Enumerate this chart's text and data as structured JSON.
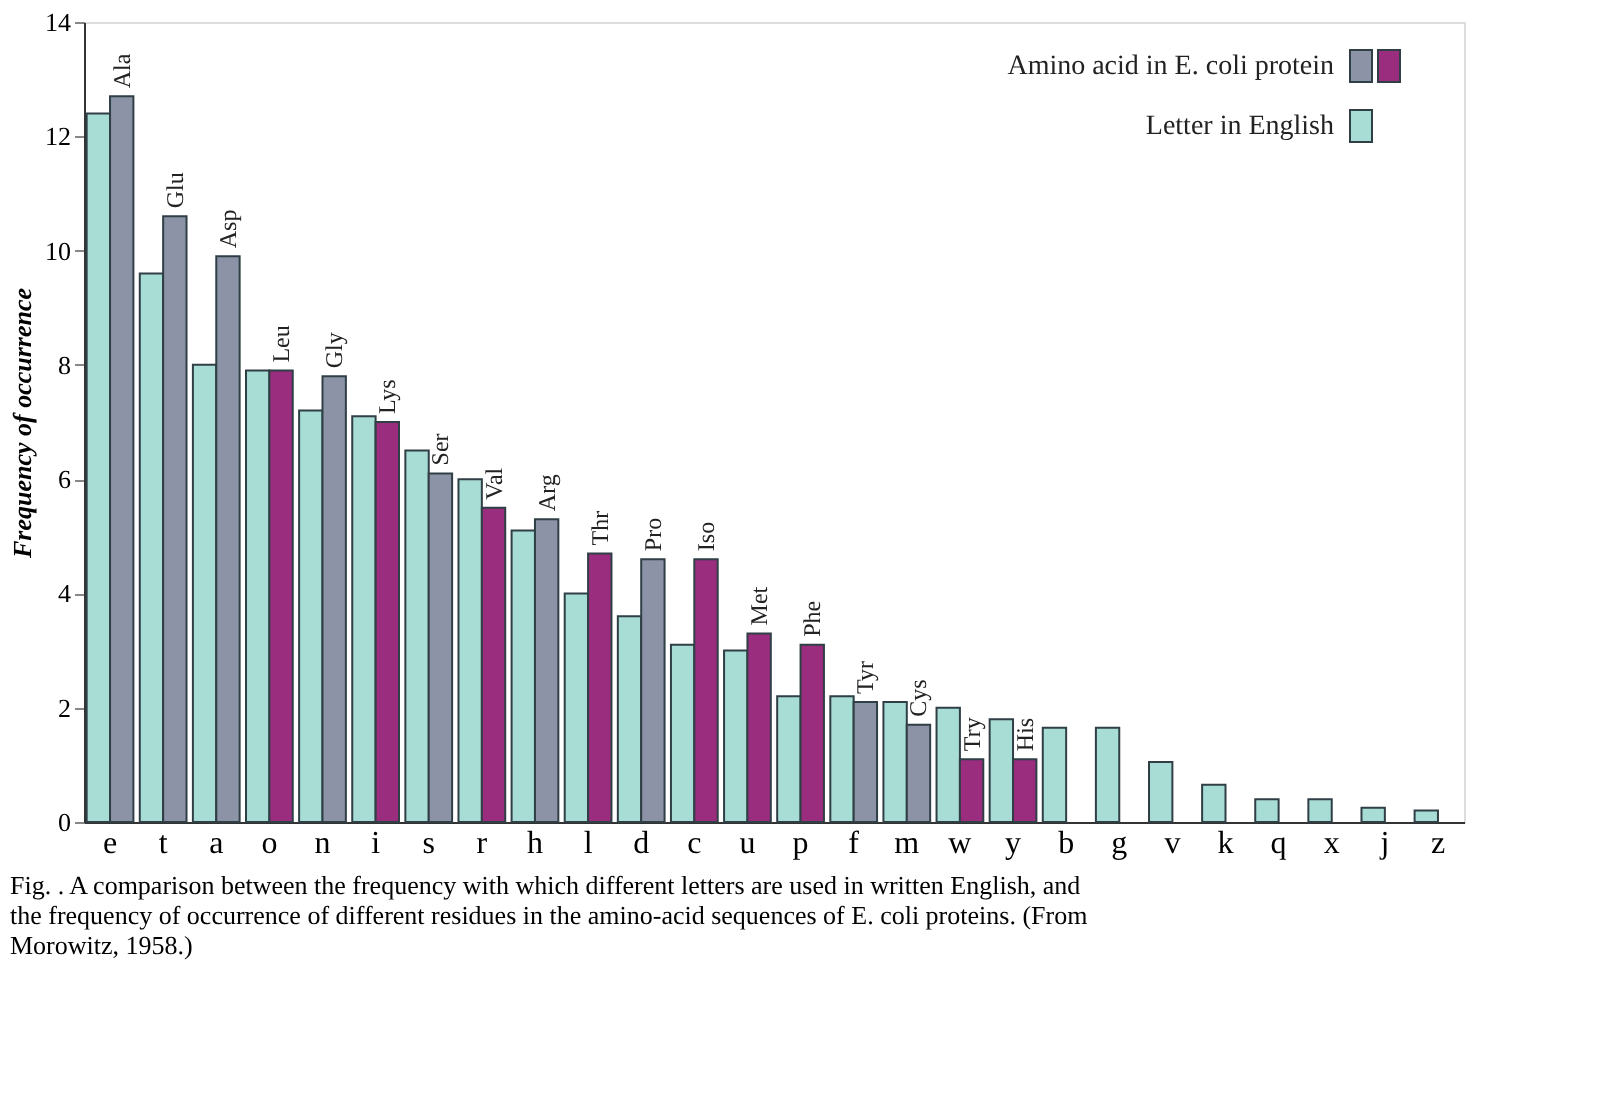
{
  "chart_data": {
    "type": "bar",
    "ylabel": "Frequency of occurrence",
    "categories": [
      "e",
      "t",
      "a",
      "o",
      "n",
      "i",
      "s",
      "r",
      "h",
      "l",
      "d",
      "c",
      "u",
      "p",
      "f",
      "m",
      "w",
      "y",
      "b",
      "g",
      "v",
      "k",
      "q",
      "x",
      "j",
      "z"
    ],
    "series": [
      {
        "name": "Letter in English",
        "color": "#a8ddd5",
        "values": [
          12.4,
          9.6,
          8.0,
          7.9,
          7.2,
          7.1,
          6.5,
          6.0,
          5.1,
          4.0,
          3.6,
          3.1,
          3.0,
          2.2,
          2.2,
          2.1,
          2.0,
          1.8,
          1.65,
          1.65,
          1.05,
          0.65,
          0.4,
          0.4,
          0.25,
          0.2
        ]
      },
      {
        "name": "Amino acid in E. coli protein",
        "colors": [
          "#8c93a6",
          "#8c93a6",
          "#8c93a6",
          "#9b2d7f",
          "#8c93a6",
          "#9b2d7f",
          "#8c93a6",
          "#9b2d7f",
          "#8c93a6",
          "#9b2d7f",
          "#8c93a6",
          "#9b2d7f",
          "#9b2d7f",
          "#9b2d7f",
          "#8c93a6",
          "#8c93a6",
          "#9b2d7f",
          "#9b2d7f",
          null,
          null,
          null,
          null,
          null,
          null,
          null,
          null
        ],
        "values": [
          12.7,
          10.6,
          9.9,
          7.9,
          7.8,
          7.0,
          6.1,
          5.5,
          5.3,
          4.7,
          4.6,
          4.6,
          3.3,
          3.1,
          2.1,
          1.7,
          1.1,
          1.1,
          null,
          null,
          null,
          null,
          null,
          null,
          null,
          null
        ]
      }
    ],
    "ylim": [
      0,
      14
    ],
    "yticks": [
      0,
      2,
      4,
      6,
      8,
      10,
      12,
      14
    ],
    "grid": false,
    "legend": "top right",
    "annotations": [
      {
        "text": "Ala",
        "x": "e",
        "y": 12.7
      },
      {
        "text": "Glu",
        "x": "t",
        "y": 10.6
      },
      {
        "text": "Asp",
        "x": "a",
        "y": 9.9
      },
      {
        "text": "Leu",
        "x": "o",
        "y": 7.9
      },
      {
        "text": "Gly",
        "x": "n",
        "y": 7.8
      },
      {
        "text": "Lys",
        "x": "i",
        "y": 7.0
      },
      {
        "text": "Ser",
        "x": "s",
        "y": 6.1
      },
      {
        "text": "Val",
        "x": "r",
        "y": 5.5
      },
      {
        "text": "Arg",
        "x": "h",
        "y": 5.3
      },
      {
        "text": "Thr",
        "x": "l",
        "y": 4.7
      },
      {
        "text": "Pro",
        "x": "d",
        "y": 4.6
      },
      {
        "text": "Iso",
        "x": "c",
        "y": 4.6
      },
      {
        "text": "Met",
        "x": "u",
        "y": 3.3
      },
      {
        "text": "Phe",
        "x": "p",
        "y": 3.1
      },
      {
        "text": "Tyr",
        "x": "f",
        "y": 2.1
      },
      {
        "text": "Cys",
        "x": "m",
        "y": 1.7
      },
      {
        "text": "Try",
        "x": "w",
        "y": 1.1
      },
      {
        "text": "His",
        "x": "y",
        "y": 1.1
      },
      "Fig. . A comparison between the frequency with which different letters are used in written English, and the frequency of occurrence of different residues in the amino-acid sequences of E. coli proteins. (From Morowitz, 1958.)"
    ]
  }
}
